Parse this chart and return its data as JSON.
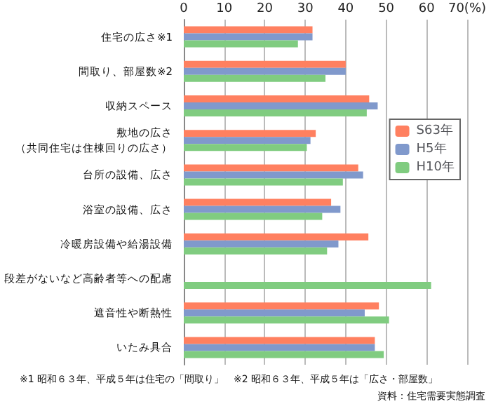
{
  "chart_data": {
    "type": "bar",
    "orientation": "horizontal",
    "categories": [
      "住宅の広さ※1",
      "間取り、部屋数※2",
      "収納スペース",
      "敷地の広さ（共同住宅は住棟回りの広さ）",
      "台所の設備、広さ",
      "浴室の設備、広さ",
      "冷暖房設備や給湯設備",
      "段差がないなど高齢者等への配慮",
      "遮音性や断熱性",
      "いたみ具合"
    ],
    "series": [
      {
        "name": "S63年",
        "color": "#ff8060",
        "values": [
          31.8,
          40,
          45.8,
          32.6,
          43.1,
          36.4,
          45.6,
          null,
          48.2,
          47.2
        ]
      },
      {
        "name": "H5年",
        "color": "#8099cc",
        "values": [
          31.8,
          40,
          47.9,
          31.3,
          44.3,
          38.7,
          38.2,
          null,
          44.7,
          47.2
        ]
      },
      {
        "name": "H10年",
        "color": "#80cc80",
        "values": [
          28.2,
          35,
          45.2,
          30.4,
          39.3,
          34.2,
          35.4,
          61.1,
          50.7,
          49.4
        ]
      }
    ],
    "xlim": [
      0,
      70
    ],
    "xticks": [
      0,
      10,
      20,
      30,
      40,
      50,
      60,
      {
        "value": 70,
        "label": "70(%)"
      }
    ],
    "grid": "x",
    "legend": "right",
    "annotations": [
      "※1 昭和６３年、平成５年は住宅の「間取り」　※2 昭和６３年、平成５年は「広さ・部屋数」",
      "資料：住宅需要実態調査"
    ]
  }
}
